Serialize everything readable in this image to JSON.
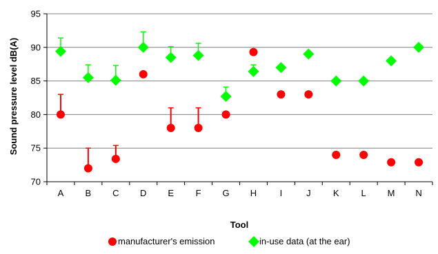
{
  "chart_data": {
    "type": "scatter",
    "title": "",
    "xlabel": "Tool",
    "ylabel": "Sound pressure level dB(A)",
    "ylim": [
      70,
      95
    ],
    "yticks": [
      70,
      75,
      80,
      85,
      90,
      95
    ],
    "grid": true,
    "legend_position": "bottom",
    "categories": [
      "A",
      "B",
      "C",
      "D",
      "E",
      "F",
      "G",
      "H",
      "I",
      "J",
      "K",
      "L",
      "M",
      "N"
    ],
    "series": [
      {
        "name": "manufacturer's emission",
        "marker": "circle",
        "color": "#ff0000",
        "values": [
          80,
          72,
          73.4,
          86,
          78,
          78,
          80,
          89.3,
          83,
          83,
          74,
          74,
          72.9,
          72.9
        ],
        "error_plus": [
          3,
          3,
          2,
          null,
          3,
          3,
          null,
          null,
          null,
          null,
          null,
          null,
          null,
          null
        ]
      },
      {
        "name": "in-use data (at the ear)",
        "marker": "diamond",
        "color": "#00ff00",
        "values": [
          89.4,
          85.5,
          85.1,
          90,
          88.5,
          88.8,
          82.7,
          86.4,
          87,
          89,
          85,
          85,
          88,
          90
        ],
        "error_plus": [
          2,
          1.9,
          2.2,
          2.3,
          1.6,
          1.8,
          1.4,
          1,
          null,
          null,
          null,
          null,
          null,
          null
        ]
      }
    ]
  }
}
